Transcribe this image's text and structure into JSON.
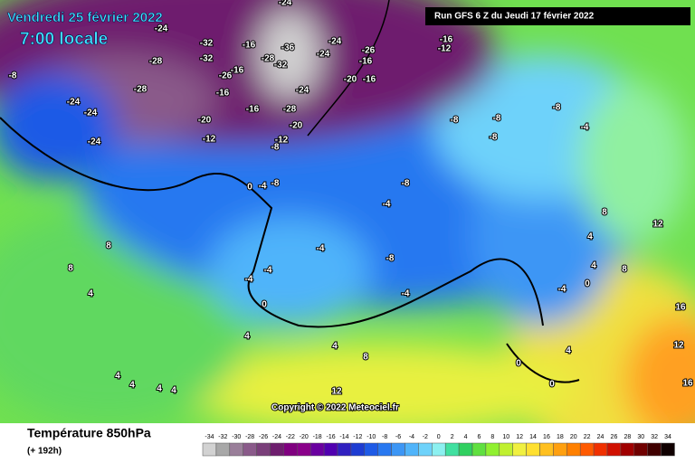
{
  "header": {
    "date": "Vendredi 25 février 2022",
    "time": "7:00 locale",
    "run": "Run GFS 6 Z du Jeudi 17 février 2022"
  },
  "footer": {
    "title": "Température 850hPa",
    "lead": "(+ 192h)",
    "copyright": "Copyright © 2022 Meteociel.fr"
  },
  "colorbar": {
    "ticks": [
      -34,
      -32,
      -30,
      -28,
      -26,
      -24,
      -22,
      -20,
      -18,
      -16,
      -14,
      -12,
      -10,
      -8,
      -6,
      -4,
      -2,
      0,
      2,
      4,
      6,
      8,
      10,
      12,
      14,
      16,
      18,
      20,
      22,
      24,
      26,
      28,
      30,
      32,
      34
    ],
    "colors": [
      "#d2d2d2",
      "#a8a8a8",
      "#9a7f9a",
      "#8a5a8a",
      "#7a3f7a",
      "#6e1e6e",
      "#800080",
      "#8a008a",
      "#6a00a0",
      "#5000b0",
      "#3020c0",
      "#1e3cd2",
      "#1e5ae6",
      "#2878f0",
      "#3c96f5",
      "#50b4fa",
      "#6ed2fa",
      "#8cf0f0",
      "#40e0a0",
      "#30d060",
      "#60e040",
      "#90f030",
      "#c0f030",
      "#f0f040",
      "#ffe030",
      "#ffc020",
      "#ffa010",
      "#ff8000",
      "#ff5a00",
      "#f03000",
      "#d01000",
      "#a00000",
      "#700000",
      "#400000",
      "#100000"
    ]
  },
  "contour_labels": [
    -24,
    -32,
    -28,
    -32,
    -24,
    -36,
    -28,
    -32,
    -24,
    -24,
    -16,
    -16,
    -26,
    -16,
    -24,
    -20,
    -16,
    -26,
    -16,
    -16,
    -12,
    -8,
    -24,
    -28,
    -24,
    -24,
    -20,
    -12,
    -16,
    -28,
    -20,
    -12,
    -8,
    -8,
    -8,
    -8,
    -8,
    -4,
    -8,
    -4,
    0,
    -8,
    -4,
    -4,
    -4,
    -4,
    0,
    -8,
    -4,
    8,
    8,
    4,
    4,
    4,
    8,
    12,
    4,
    4,
    4,
    4,
    4,
    8,
    12,
    -4,
    0,
    4,
    8,
    16,
    12,
    16,
    0,
    0,
    4
  ]
}
